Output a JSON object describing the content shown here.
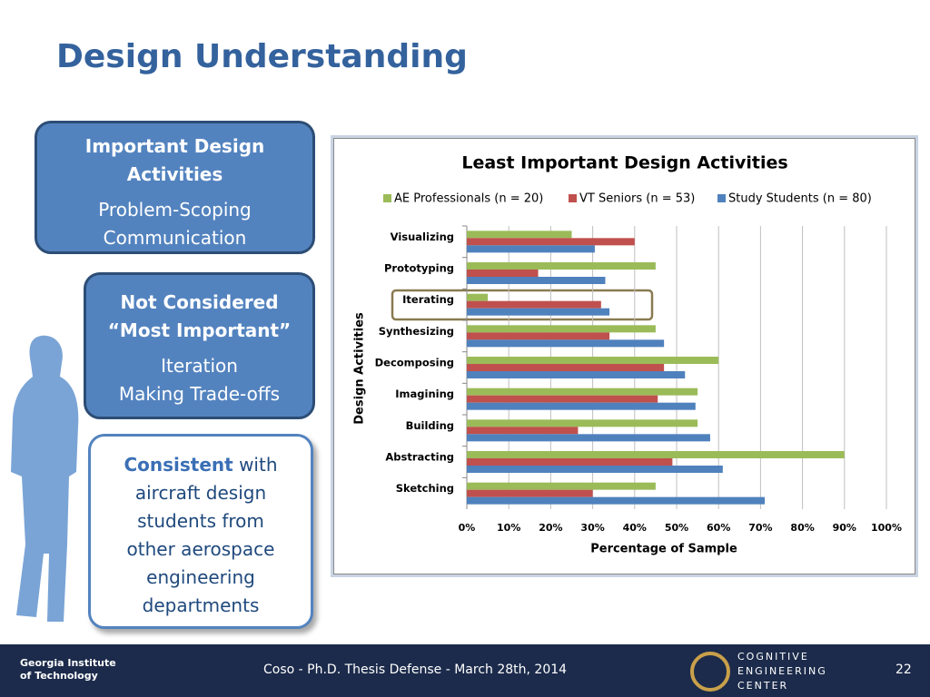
{
  "slide": {
    "title": "Design Understanding",
    "box1": {
      "heading": "Important Design Activities",
      "items": [
        "Problem-Scoping",
        "Communication"
      ]
    },
    "box2": {
      "heading": "Not Considered “Most Important”",
      "items": [
        "Iteration",
        "Making Trade-offs"
      ]
    },
    "box3": {
      "emphasis": "Consistent",
      "text": "with aircraft design students from other aerospace engineering departments"
    },
    "footer": {
      "logo_left": "Georgia Institute of Technology",
      "center": "Coso - Ph.D. Thesis Defense - March 28th, 2014",
      "page": "22",
      "logo_right": [
        "Cognitive",
        "Engineering",
        "Center"
      ]
    }
  },
  "chart_data": {
    "type": "hbar",
    "title": "Least Important Design Activities",
    "x_label": "Percentage of Sample",
    "y_label": "Design Activities",
    "categories": [
      "Visualizing",
      "Prototyping",
      "Iterating",
      "Synthesizing",
      "Decomposing",
      "Imagining",
      "Building",
      "Abstracting",
      "Sketching"
    ],
    "series": [
      {
        "name": "AE Professionals (n = 20)",
        "color": "#9bbb59",
        "values": [
          25,
          45,
          5,
          45,
          60,
          55,
          55,
          90,
          45
        ]
      },
      {
        "name": "VT Seniors (n = 53)",
        "color": "#c0504d",
        "values": [
          40,
          17,
          32,
          34,
          47,
          45.5,
          26.5,
          49,
          30
        ]
      },
      {
        "name": "Study Students (n = 80)",
        "color": "#4f81bd",
        "values": [
          30.5,
          33,
          34,
          47,
          52,
          54.5,
          58,
          61,
          71
        ]
      }
    ],
    "xlim": [
      0,
      100
    ],
    "xticks": [
      {
        "value": 0,
        "label": "0%"
      },
      {
        "value": 10,
        "label": "10%"
      },
      {
        "value": 20,
        "label": "20%"
      },
      {
        "value": 30,
        "label": "30%"
      },
      {
        "value": 40,
        "label": "40%"
      },
      {
        "value": 50,
        "label": "50%"
      },
      {
        "value": 60,
        "label": "60%"
      },
      {
        "value": 70,
        "label": "70%"
      },
      {
        "value": 80,
        "label": "80%"
      },
      {
        "value": 90,
        "label": "90%"
      },
      {
        "value": 100,
        "label": "100%"
      }
    ],
    "grid": true,
    "legend": "top"
  }
}
